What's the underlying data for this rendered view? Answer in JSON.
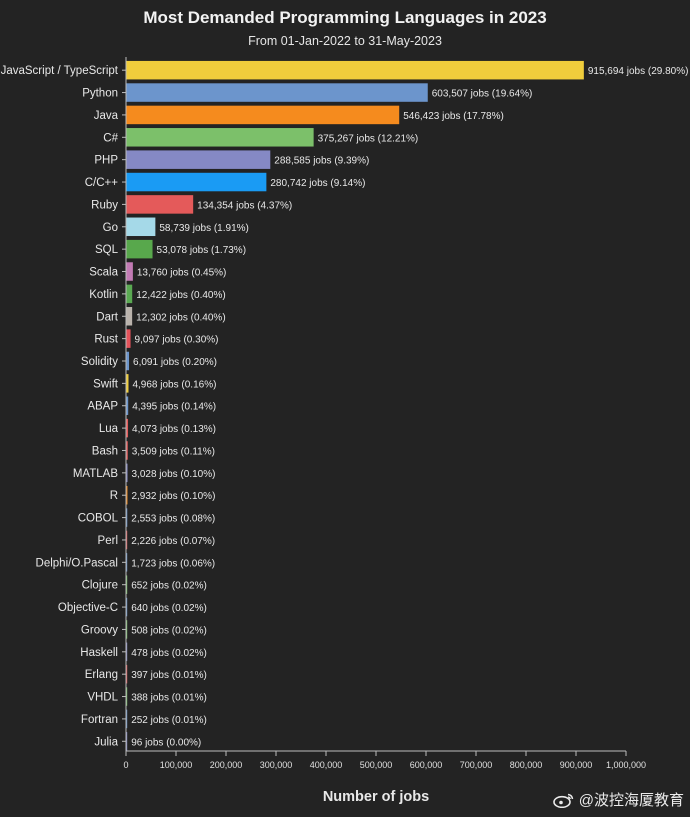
{
  "chart_data": {
    "type": "bar",
    "orientation": "horizontal",
    "title": "Most Demanded Programming Languages in 2023",
    "subtitle": "From 01-Jan-2022 to 31-May-2023",
    "xlabel": "Number of jobs",
    "ylabel": "",
    "xlim": [
      0,
      1000000
    ],
    "xticks": [
      "0",
      "100,000",
      "200,000",
      "300,000",
      "400,000",
      "500,000",
      "600,000",
      "700,000",
      "800,000",
      "900,000",
      "1,000,000"
    ],
    "grid": false,
    "categories": [
      "JavaScript / TypeScript",
      "Python",
      "Java",
      "C#",
      "PHP",
      "C/C++",
      "Ruby",
      "Go",
      "SQL",
      "Scala",
      "Kotlin",
      "Dart",
      "Rust",
      "Solidity",
      "Swift",
      "ABAP",
      "Lua",
      "Bash",
      "MATLAB",
      "R",
      "COBOL",
      "Perl",
      "Delphi/O.Pascal",
      "Clojure",
      "Objective-C",
      "Groovy",
      "Haskell",
      "Erlang",
      "VHDL",
      "Fortran",
      "Julia"
    ],
    "values": [
      915694,
      603507,
      546423,
      375267,
      288585,
      280742,
      134354,
      58739,
      53078,
      13760,
      12422,
      12302,
      9097,
      6091,
      4968,
      4395,
      4073,
      3509,
      3028,
      2932,
      2553,
      2226,
      1723,
      652,
      640,
      508,
      478,
      397,
      388,
      252,
      96
    ],
    "data_labels": [
      "915,694 jobs (29.80%)",
      "603,507 jobs (19.64%)",
      "546,423 jobs (17.78%)",
      "375,267 jobs (12.21%)",
      "288,585 jobs (9.39%)",
      "280,742 jobs (9.14%)",
      "134,354 jobs (4.37%)",
      "58,739 jobs (1.91%)",
      "53,078 jobs (1.73%)",
      "13,760 jobs (0.45%)",
      "12,422 jobs (0.40%)",
      "12,302 jobs (0.40%)",
      "9,097 jobs (0.30%)",
      "6,091 jobs (0.20%)",
      "4,968 jobs (0.16%)",
      "4,395 jobs (0.14%)",
      "4,073 jobs (0.13%)",
      "3,509 jobs (0.11%)",
      "3,028 jobs (0.10%)",
      "2,932 jobs (0.10%)",
      "2,553 jobs (0.08%)",
      "2,226 jobs (0.07%)",
      "1,723 jobs (0.06%)",
      "652 jobs (0.02%)",
      "640 jobs (0.02%)",
      "508 jobs (0.02%)",
      "478 jobs (0.02%)",
      "397 jobs (0.01%)",
      "388 jobs (0.01%)",
      "252 jobs (0.01%)",
      "96 jobs (0.00%)"
    ],
    "colors": [
      "#f0cd3c",
      "#6c95cc",
      "#f58b1e",
      "#7cc06a",
      "#8589c4",
      "#1a9bf4",
      "#e45a5a",
      "#a5d9e8",
      "#58a84c",
      "#c27ab4",
      "#5aa952",
      "#bab3ac",
      "#e4525a",
      "#6c95cc",
      "#f0cd3c",
      "#6c95cc",
      "#e45a5a",
      "#e45a5a",
      "#8589c4",
      "#f58b1e",
      "#6c95cc",
      "#e45a5a",
      "#6c95cc",
      "#7cc06a",
      "#6c95cc",
      "#7cc06a",
      "#8589c4",
      "#e45a5a",
      "#7cc06a",
      "#6c95cc",
      "#8589c4"
    ]
  },
  "watermark": {
    "text": "@波控海厦教育",
    "icon": "weibo-icon"
  }
}
